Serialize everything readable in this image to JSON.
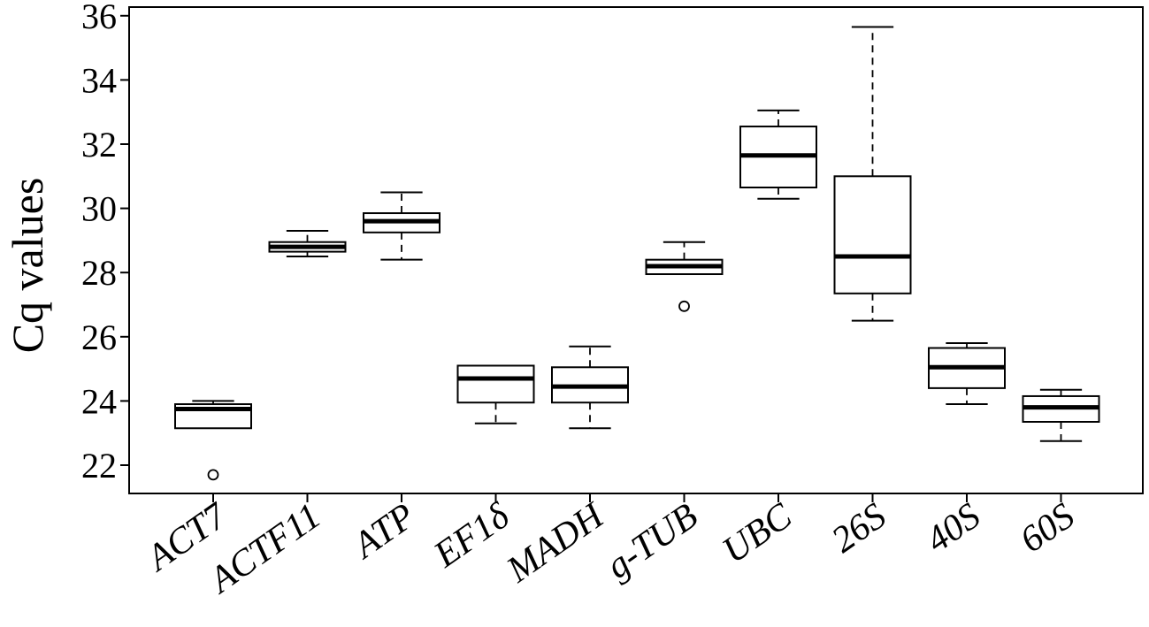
{
  "chart_data": {
    "type": "boxplot",
    "ylabel": "Cq values",
    "xlabel": "",
    "ylim": [
      21.0,
      36.5
    ],
    "yticks": [
      "22",
      "24",
      "26",
      "28",
      "30",
      "32",
      "34",
      "36"
    ],
    "categories": [
      "ACT7",
      "ACTF11",
      "ATP",
      "EF1δ",
      "MADH",
      "g-TUB",
      "UBC",
      "26S",
      "40S",
      "60S"
    ],
    "boxes": [
      {
        "name": "ACT7",
        "whisker_low": 23.15,
        "q1": 23.15,
        "median": 23.75,
        "q3": 23.9,
        "whisker_high": 24.0,
        "outliers": [
          21.7
        ]
      },
      {
        "name": "ACTF11",
        "whisker_low": 28.5,
        "q1": 28.65,
        "median": 28.8,
        "q3": 28.95,
        "whisker_high": 29.3,
        "outliers": []
      },
      {
        "name": "ATP",
        "whisker_low": 28.4,
        "q1": 29.25,
        "median": 29.6,
        "q3": 29.85,
        "whisker_high": 30.5,
        "outliers": []
      },
      {
        "name": "EF1δ",
        "whisker_low": 23.3,
        "q1": 23.95,
        "median": 24.7,
        "q3": 25.1,
        "whisker_high": 25.1,
        "outliers": []
      },
      {
        "name": "MADH",
        "whisker_low": 23.15,
        "q1": 23.95,
        "median": 24.45,
        "q3": 25.05,
        "whisker_high": 25.7,
        "outliers": []
      },
      {
        "name": "g-TUB",
        "whisker_low": 27.95,
        "q1": 27.95,
        "median": 28.2,
        "q3": 28.4,
        "whisker_high": 28.95,
        "outliers": [
          26.95
        ]
      },
      {
        "name": "UBC",
        "whisker_low": 30.3,
        "q1": 30.65,
        "median": 31.65,
        "q3": 32.55,
        "whisker_high": 33.05,
        "outliers": []
      },
      {
        "name": "26S",
        "whisker_low": 26.5,
        "q1": 27.35,
        "median": 28.5,
        "q3": 31.0,
        "whisker_high": 35.65,
        "outliers": []
      },
      {
        "name": "40S",
        "whisker_low": 23.9,
        "q1": 24.4,
        "median": 25.05,
        "q3": 25.65,
        "whisker_high": 25.8,
        "outliers": []
      },
      {
        "name": "60S",
        "whisker_low": 22.75,
        "q1": 23.35,
        "median": 23.8,
        "q3": 24.15,
        "whisker_high": 24.35,
        "outliers": []
      }
    ],
    "grid": false,
    "legend": "none"
  }
}
